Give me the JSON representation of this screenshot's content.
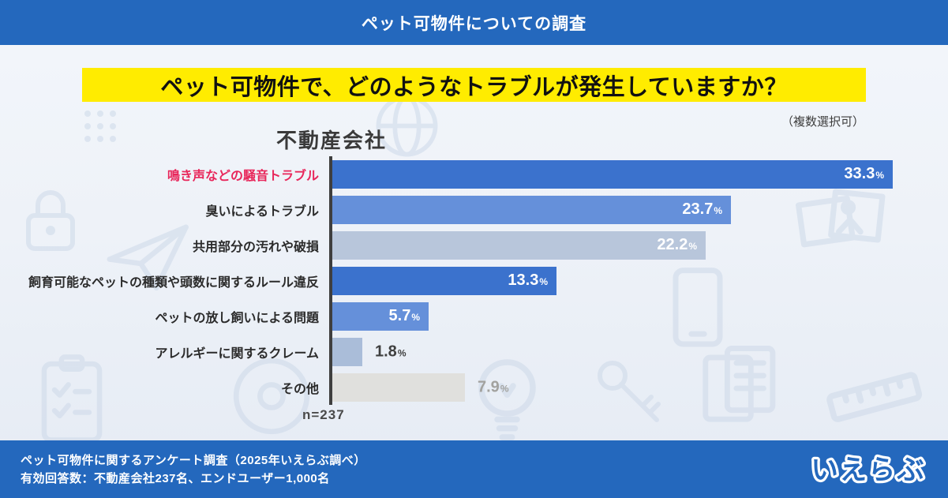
{
  "header": {
    "title": "ペット可物件についての調査"
  },
  "question": {
    "text": "ペット可物件で、どのようなトラブルが発生していますか？",
    "note": "（複数選択可）"
  },
  "chart_data": {
    "type": "bar",
    "orientation": "horizontal",
    "group_title": "不動産会社",
    "sample_size_label": "n=237",
    "value_unit": "%",
    "xlim": [
      0,
      35
    ],
    "legend": "none",
    "categories": [
      "鳴き声などの騒音トラブル",
      "臭いによるトラブル",
      "共用部分の汚れや破損",
      "飼育可能なペットの種類や頭数に関するルール違反",
      "ペットの放し飼いによる問題",
      "アレルギーに関するクレーム",
      "その他"
    ],
    "values": [
      33.3,
      23.7,
      22.2,
      13.3,
      5.7,
      1.8,
      7.9
    ],
    "bars": [
      {
        "label": "鳴き声などの騒音トラブル",
        "value": 33.3,
        "bar_color": "#3b72cd",
        "label_color": "#e8275b",
        "value_position": "inside",
        "value_color": "#ffffff"
      },
      {
        "label": "臭いによるトラブル",
        "value": 23.7,
        "bar_color": "#6590da",
        "label_color": "#2b2b2b",
        "value_position": "inside",
        "value_color": "#ffffff"
      },
      {
        "label": "共用部分の汚れや破損",
        "value": 22.2,
        "bar_color": "#b8c6db",
        "label_color": "#2b2b2b",
        "value_position": "inside",
        "value_color": "#ffffff"
      },
      {
        "label": "飼育可能なペットの種類や頭数に関するルール違反",
        "value": 13.3,
        "bar_color": "#3b72cd",
        "label_color": "#2b2b2b",
        "value_position": "inside",
        "value_color": "#ffffff"
      },
      {
        "label": "ペットの放し飼いによる問題",
        "value": 5.7,
        "bar_color": "#6590da",
        "label_color": "#2b2b2b",
        "value_position": "inside",
        "value_color": "#ffffff"
      },
      {
        "label": "アレルギーに関するクレーム",
        "value": 1.8,
        "bar_color": "#aabdd9",
        "label_color": "#2b2b2b",
        "value_position": "outside",
        "value_color": "#3f3f3f"
      },
      {
        "label": "その他",
        "value": 7.9,
        "bar_color": "#e0e0dd",
        "label_color": "#2b2b2b",
        "value_position": "outside",
        "value_color": "#a2a29f"
      }
    ]
  },
  "footer": {
    "line1": "ペット可物件に関するアンケート調査（2025年いえらぶ調べ）",
    "line2": "有効回答数：不動産会社237名、エンドユーザー1,000名",
    "logo_text": "いえらぶ"
  },
  "colors": {
    "header_bg": "#2468bd",
    "footer_bg": "#2468bd",
    "highlight_bg": "#ffec00",
    "highlight_text": "#111111",
    "axis": "#3f3f3f",
    "accent_red": "#e8275b",
    "background_top": "#f3f6fb",
    "background_bottom": "#e5ebf4"
  },
  "watermark_icons": [
    "lock-icon",
    "dots-grid-icon",
    "paper-plane-icon",
    "globe-icon",
    "clipboard-icon",
    "disc-icon",
    "lightbulb-icon",
    "key-icon",
    "documents-icon",
    "ruler-icon",
    "pictures-icon",
    "tablet-icon"
  ]
}
